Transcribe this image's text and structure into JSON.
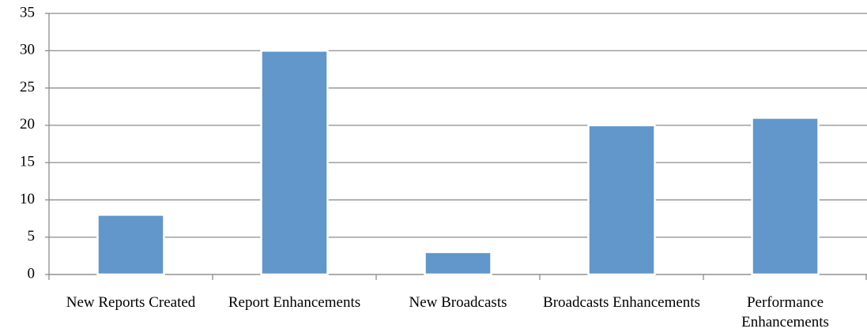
{
  "chart_data": {
    "type": "bar",
    "categories": [
      "New Reports Created",
      "Report Enhancements",
      "New Broadcasts",
      "Broadcasts Enhancements",
      "Performance Enhancements"
    ],
    "values": [
      8,
      30,
      3,
      20,
      21
    ],
    "color": "#6197ca",
    "ylim": [
      0,
      35
    ],
    "yticks": [
      0,
      5,
      10,
      15,
      20,
      25,
      30,
      35
    ],
    "grid": true
  }
}
